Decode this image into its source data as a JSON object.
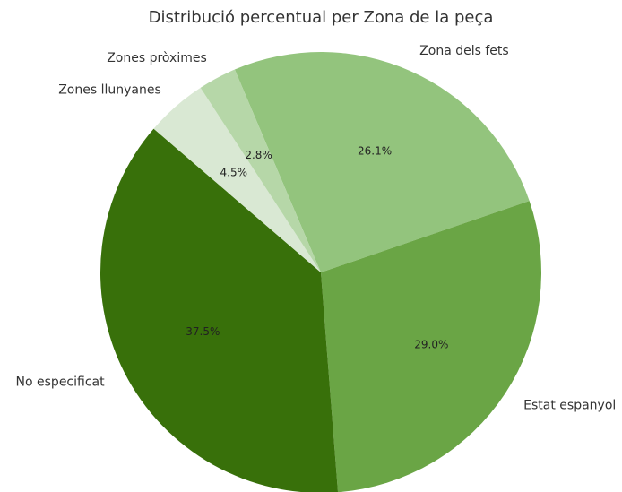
{
  "chart_data": {
    "type": "pie",
    "title": "Distribució percentual per Zona de la peça",
    "categories": [
      "Zona dels fets",
      "Estat espanyol",
      "No especificat",
      "Zones llunyanes",
      "Zones pròximes"
    ],
    "values": [
      26.1,
      29.0,
      37.5,
      4.5,
      2.8
    ],
    "value_labels": [
      "26.1%",
      "29.0%",
      "37.5%",
      "4.5%",
      "2.8%"
    ],
    "colors": [
      "#93c47d",
      "#6aa545",
      "#38700a",
      "#d9e8d3",
      "#b6d7a8"
    ]
  }
}
